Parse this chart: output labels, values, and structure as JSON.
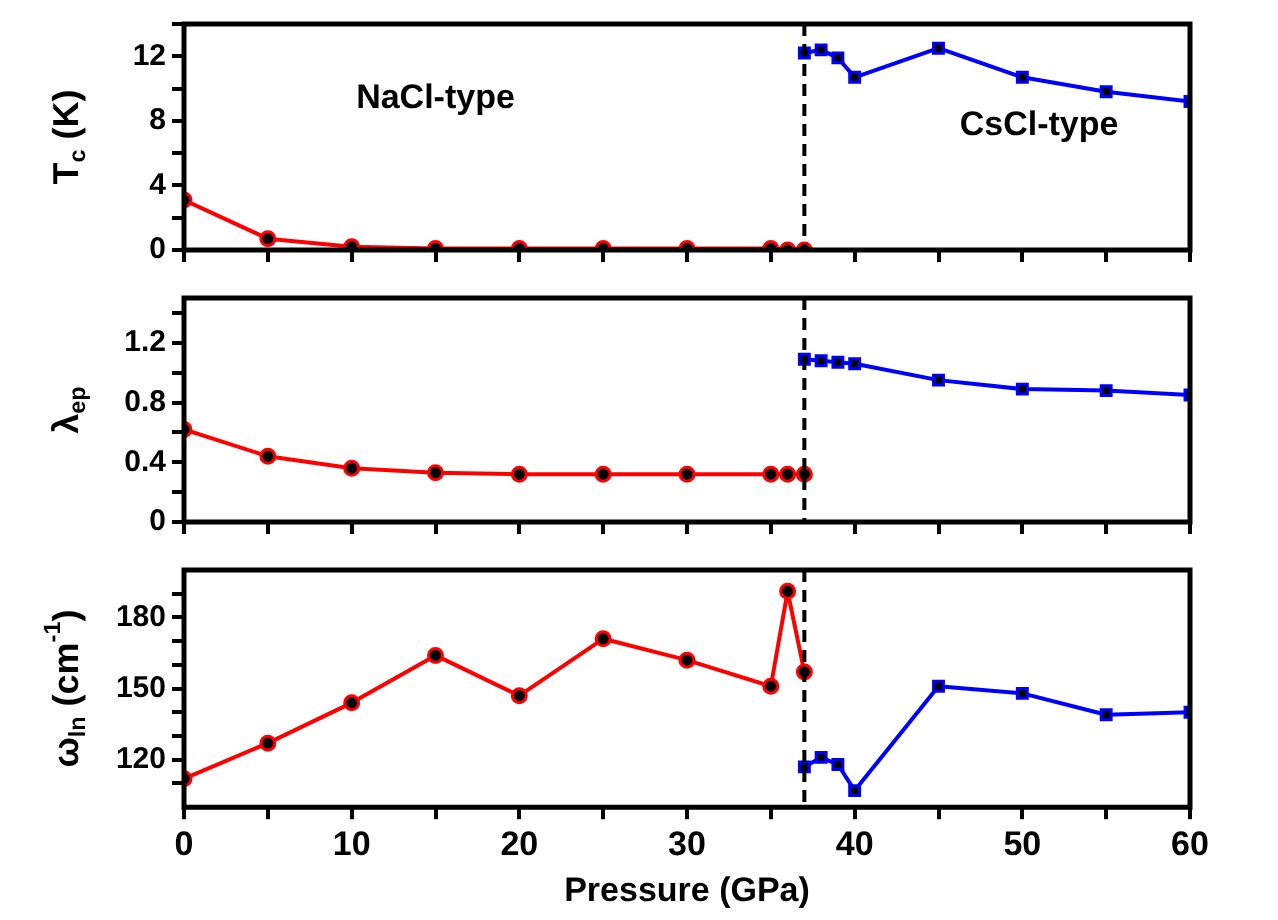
{
  "chart_data": [
    {
      "type": "line",
      "ylabel": "T$_{c}$ (K)",
      "xlim": [
        0,
        60
      ],
      "xticks": [
        0,
        {
          "value": 5,
          "label": null
        },
        10,
        {
          "value": 15,
          "label": null
        },
        20,
        {
          "value": 25,
          "label": null
        },
        30,
        {
          "value": 35,
          "label": null
        },
        40,
        {
          "value": 45,
          "label": null
        },
        50,
        {
          "value": 55,
          "label": null
        },
        60
      ],
      "ylim": [
        0,
        14
      ],
      "yticks": [
        0,
        {
          "value": 2,
          "label": null
        },
        4,
        {
          "value": 6,
          "label": null
        },
        8,
        {
          "value": 10,
          "label": null
        },
        12,
        {
          "value": 14,
          "label": null
        }
      ],
      "tick_labels": "y",
      "grid": false,
      "legend": false,
      "line_style": "solid",
      "series": [
        {
          "color": "#ff0000",
          "marker": "circle",
          "x": [
            0,
            5,
            10,
            15,
            20,
            25,
            30,
            35,
            36,
            37
          ],
          "values": [
            3.1,
            0.7,
            0.2,
            0.1,
            0.1,
            0.1,
            0.1,
            0.1,
            0,
            0
          ]
        },
        {
          "color": "#0000ff",
          "marker": "square",
          "x": [
            37,
            38,
            39,
            40,
            45,
            50,
            55,
            60
          ],
          "values": [
            12.2,
            12.4,
            11.9,
            10.7,
            12.5,
            10.7,
            9.8,
            9.2
          ]
        }
      ],
      "ref_lines": [
        {
          "axis": "x",
          "value": 37,
          "color": "#000000",
          "line_style": "dashed"
        }
      ],
      "annotations": [
        "NaCl-type",
        "CsCl-type"
      ]
    },
    {
      "type": "line",
      "ylabel": "λ$_{ep}$",
      "xlim": [
        0,
        60
      ],
      "xticks": [
        0,
        {
          "value": 5,
          "label": null
        },
        10,
        {
          "value": 15,
          "label": null
        },
        20,
        {
          "value": 25,
          "label": null
        },
        30,
        {
          "value": 35,
          "label": null
        },
        40,
        {
          "value": 45,
          "label": null
        },
        50,
        {
          "value": 55,
          "label": null
        },
        60
      ],
      "ylim": [
        0,
        1.5
      ],
      "yticks": [
        0,
        {
          "value": 0.2,
          "label": null
        },
        0.4,
        {
          "value": 0.6,
          "label": null
        },
        0.8,
        {
          "value": 1,
          "label": null
        },
        1.2,
        {
          "value": 1.4,
          "label": null
        }
      ],
      "tick_labels": "y",
      "grid": false,
      "legend": false,
      "line_style": "solid",
      "series": [
        {
          "color": "#ff0000",
          "marker": "circle",
          "x": [
            0,
            5,
            10,
            15,
            20,
            25,
            30,
            35,
            36,
            37
          ],
          "values": [
            0.62,
            0.44,
            0.36,
            0.33,
            0.32,
            0.32,
            0.32,
            0.32,
            0.32,
            0.32
          ]
        },
        {
          "color": "#0000ff",
          "marker": "square",
          "x": [
            37,
            38,
            39,
            40,
            45,
            50,
            55,
            60
          ],
          "values": [
            1.09,
            1.08,
            1.07,
            1.06,
            0.95,
            0.89,
            0.88,
            0.85
          ]
        }
      ],
      "ref_lines": [
        {
          "axis": "x",
          "value": 37,
          "color": "#000000",
          "line_style": "dashed"
        }
      ]
    },
    {
      "type": "line",
      "ylabel": "ω$_{ln}$ (cm$^{-1}$)",
      "xlabel": "Pressure (GPa)",
      "xlim": [
        0,
        60
      ],
      "xticks": [
        0,
        {
          "value": 5,
          "label": null
        },
        10,
        {
          "value": 15,
          "label": null
        },
        20,
        {
          "value": 25,
          "label": null
        },
        30,
        {
          "value": 35,
          "label": null
        },
        40,
        {
          "value": 45,
          "label": null
        },
        50,
        {
          "value": 55,
          "label": null
        },
        60
      ],
      "ylim": [
        100,
        200
      ],
      "yticks": [
        {
          "value": 110,
          "label": null
        },
        120,
        {
          "value": 130,
          "label": null
        },
        {
          "value": 140,
          "label": null
        },
        150,
        {
          "value": 160,
          "label": null
        },
        {
          "value": 170,
          "label": null
        },
        180,
        {
          "value": 190,
          "label": null
        }
      ],
      "grid": false,
      "legend": false,
      "line_style": "solid",
      "series": [
        {
          "color": "#ff0000",
          "marker": "circle",
          "x": [
            0,
            5,
            10,
            15,
            20,
            25,
            30,
            35,
            36,
            37
          ],
          "values": [
            112,
            127,
            144,
            164,
            147,
            171,
            162,
            151,
            191,
            157
          ]
        },
        {
          "color": "#0000ff",
          "marker": "square",
          "x": [
            37,
            38,
            39,
            40,
            45,
            50,
            55,
            60
          ],
          "values": [
            117,
            121,
            118,
            107,
            151,
            148,
            139,
            140
          ]
        }
      ],
      "ref_lines": [
        {
          "axis": "x",
          "value": 37,
          "color": "#000000",
          "line_style": "dashed"
        }
      ]
    }
  ]
}
